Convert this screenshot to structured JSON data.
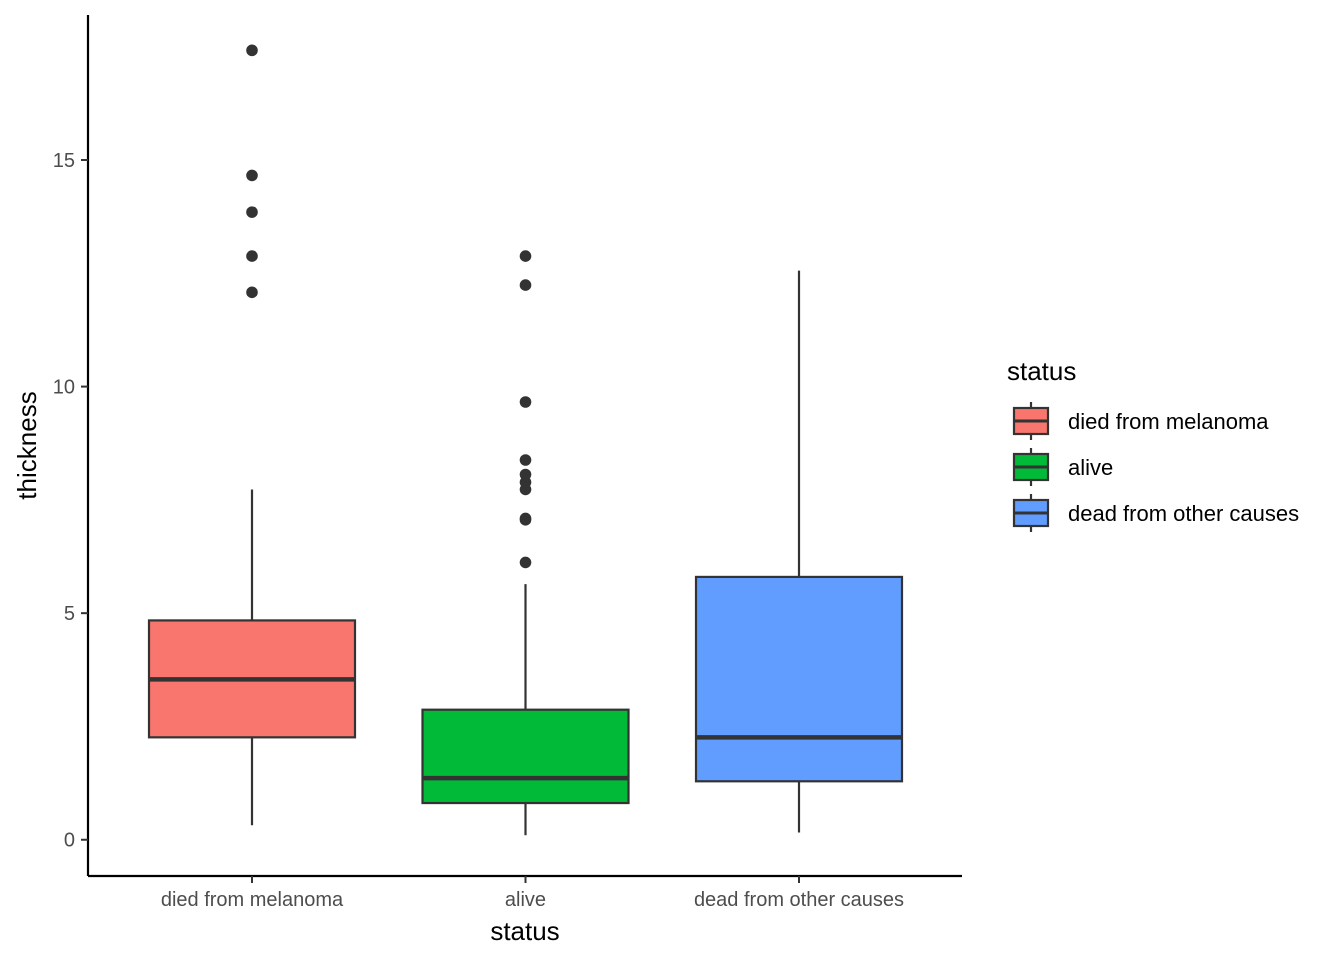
{
  "chart_data": {
    "type": "boxplot",
    "xlabel": "status",
    "ylabel": "thickness",
    "ylim": [
      -0.8,
      18.2
    ],
    "yticks": [
      0,
      5,
      10,
      15
    ],
    "grid": false,
    "legend": {
      "title": "status",
      "position": "right"
    },
    "categories": [
      "died from melanoma",
      "alive",
      "dead from other causes"
    ],
    "colors": [
      "#F8766D",
      "#00BA38",
      "#619CFF"
    ],
    "series": [
      {
        "name": "died from melanoma",
        "whisker_low": 0.32,
        "q1": 2.26,
        "median": 3.54,
        "q3": 4.84,
        "whisker_high": 7.73,
        "outliers": [
          12.08,
          12.88,
          13.85,
          14.66,
          17.42
        ]
      },
      {
        "name": "alive",
        "whisker_low": 0.1,
        "q1": 0.81,
        "median": 1.36,
        "q3": 2.87,
        "whisker_high": 5.64,
        "outliers": [
          6.12,
          7.06,
          7.09,
          7.73,
          7.89,
          8.06,
          8.38,
          9.66,
          12.24,
          12.88
        ]
      },
      {
        "name": "dead from other causes",
        "whisker_low": 0.16,
        "q1": 1.29,
        "median": 2.26,
        "q3": 5.8,
        "whisker_high": 12.56,
        "outliers": []
      }
    ]
  }
}
